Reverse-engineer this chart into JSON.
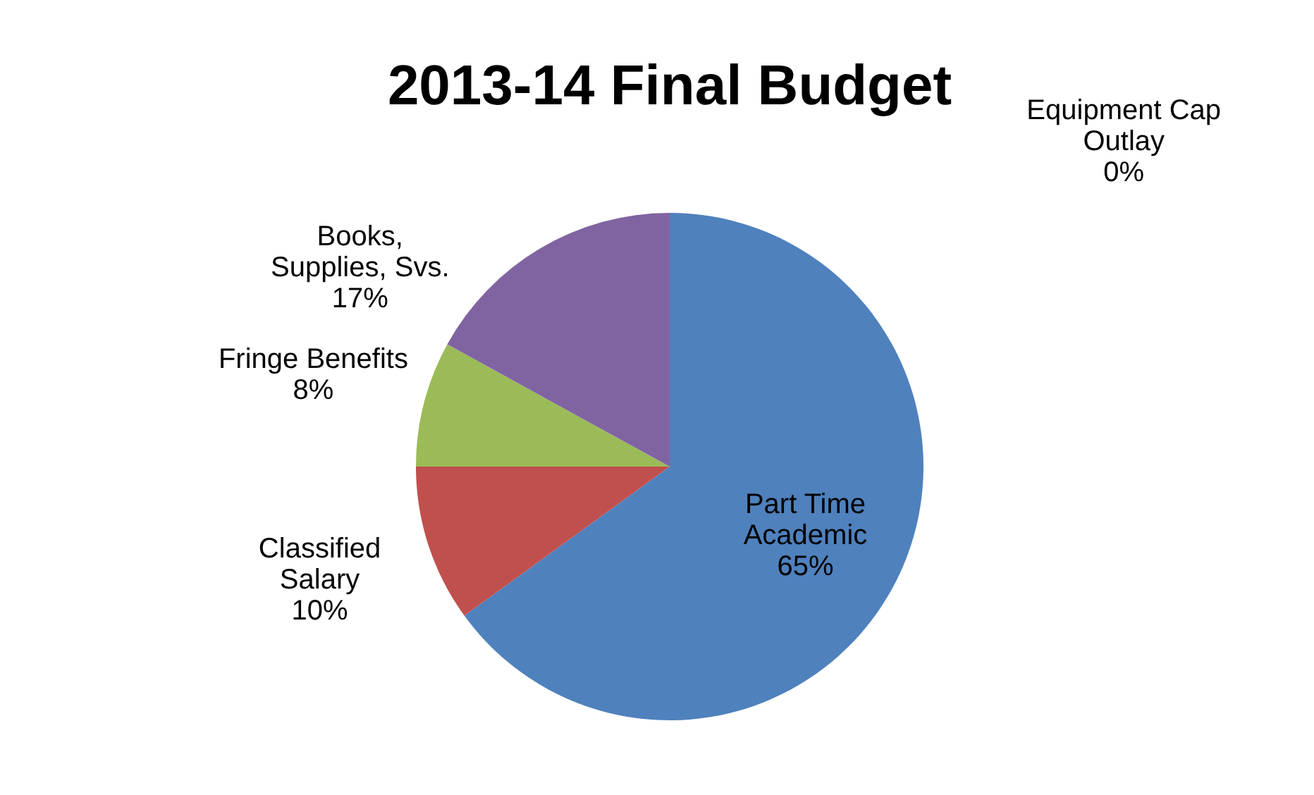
{
  "chart_data": {
    "type": "pie",
    "title": "2013-14 Final Budget",
    "categories": [
      "Part Time Academic",
      "Classified Salary",
      "Fringe Benefits",
      "Books, Supplies, Svs.",
      "Equipment Cap Outlay"
    ],
    "values": [
      65,
      10,
      8,
      17,
      0
    ],
    "colors": [
      "#4f81bd",
      "#c0504d",
      "#9bbb59",
      "#8064a2",
      "#4bacc6"
    ],
    "value_labels": [
      "65%",
      "10%",
      "8%",
      "17%",
      "0%"
    ]
  }
}
